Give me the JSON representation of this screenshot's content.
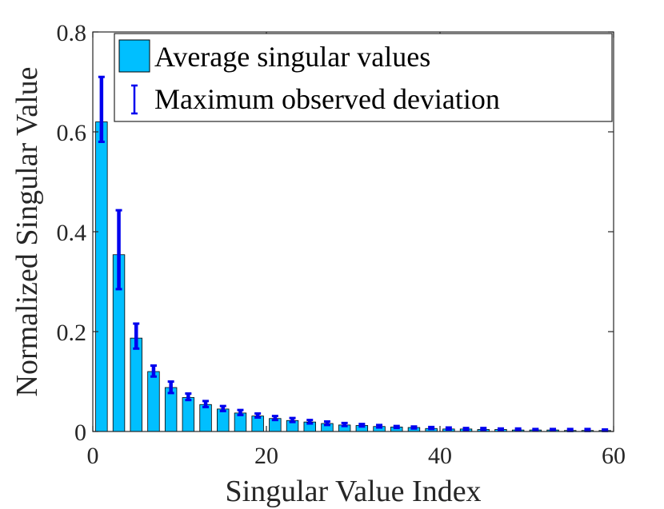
{
  "chart_data": {
    "type": "bar",
    "xlabel": "Singular Value Index",
    "ylabel": "Normalized Singular Value",
    "xlim": [
      0,
      60
    ],
    "ylim": [
      0,
      0.8
    ],
    "x_ticks": [
      0,
      20,
      40,
      60
    ],
    "y_ticks": [
      0,
      0.2,
      0.4,
      0.6,
      0.8
    ],
    "x_tick_labels": [
      "0",
      "20",
      "40",
      "60"
    ],
    "y_tick_labels": [
      "0",
      "0.2",
      "0.4",
      "0.6",
      "0.8"
    ],
    "grid": false,
    "legend_position": "top-right",
    "colors": {
      "bar": "#00bfff",
      "bar_edge": "#000000",
      "errorbar": "#0000ee",
      "axis": "#262626"
    },
    "series": [
      {
        "name": "Average singular values",
        "x": [
          1,
          3,
          5,
          7,
          9,
          11,
          13,
          15,
          17,
          19,
          21,
          23,
          25,
          27,
          29,
          31,
          33,
          35,
          37,
          39,
          41,
          43,
          45,
          47,
          49,
          51,
          53,
          55,
          57,
          59
        ],
        "values": [
          0.62,
          0.354,
          0.187,
          0.12,
          0.088,
          0.068,
          0.054,
          0.045,
          0.037,
          0.031,
          0.026,
          0.022,
          0.019,
          0.016,
          0.013,
          0.012,
          0.01,
          0.009,
          0.008,
          0.006,
          0.005,
          0.005,
          0.004,
          0.004,
          0.003,
          0.003,
          0.003,
          0.002,
          0.002,
          0.002
        ]
      },
      {
        "name": "Maximum observed deviation",
        "type": "errorbar",
        "low": [
          0.58,
          0.285,
          0.166,
          0.11,
          0.077,
          0.063,
          0.049,
          0.041,
          0.033,
          0.028,
          0.023,
          0.019,
          0.016,
          0.013,
          0.011,
          0.01,
          0.008,
          0.007,
          0.006,
          0.005,
          0.004,
          0.003,
          0.003,
          0.003,
          0.002,
          0.002,
          0.002,
          0.001,
          0.001,
          0.001
        ],
        "high": [
          0.71,
          0.443,
          0.216,
          0.132,
          0.1,
          0.076,
          0.061,
          0.051,
          0.043,
          0.036,
          0.031,
          0.027,
          0.023,
          0.02,
          0.017,
          0.015,
          0.013,
          0.011,
          0.01,
          0.009,
          0.008,
          0.007,
          0.007,
          0.006,
          0.006,
          0.005,
          0.005,
          0.005,
          0.005,
          0.004
        ]
      }
    ]
  }
}
